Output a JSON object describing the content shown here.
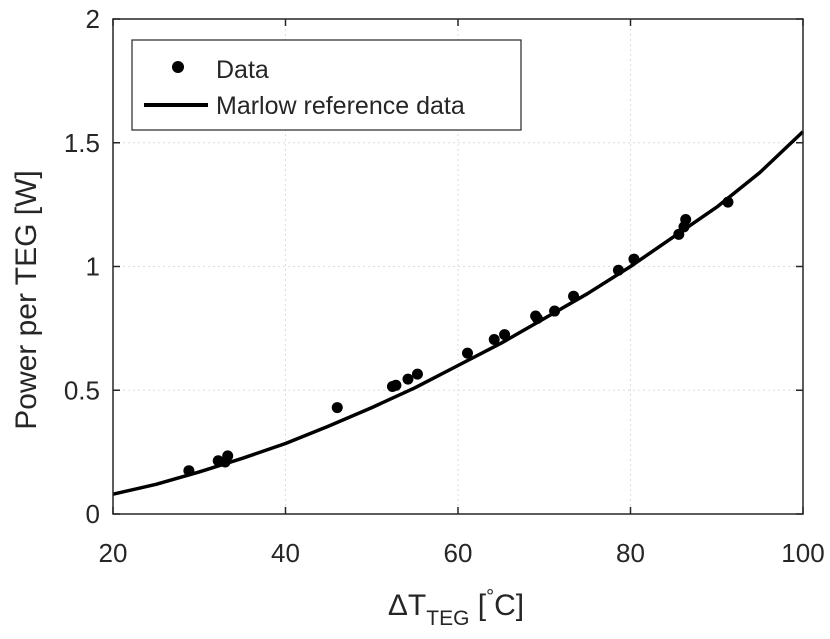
{
  "chart_data": {
    "type": "scatter",
    "xlabel": {
      "main": "ΔT",
      "sub": "TEG",
      "unit_open": " [",
      "deg": "°",
      "unit_close": "C]"
    },
    "ylabel": "Power per TEG [W]",
    "xlim": [
      20,
      100
    ],
    "ylim": [
      0,
      2
    ],
    "xticks": [
      20,
      40,
      60,
      80,
      100
    ],
    "yticks": [
      0,
      0.5,
      1,
      1.5,
      2
    ],
    "ytick_labels": [
      "0",
      "0.5",
      "1",
      "1.5",
      "2"
    ],
    "grid": true,
    "legend_position": "top-left",
    "series": [
      {
        "name": "Data",
        "kind": "markers",
        "x": [
          28.8,
          32.2,
          33.0,
          33.3,
          46.0,
          52.4,
          52.8,
          54.2,
          55.3,
          61.1,
          64.2,
          65.4,
          69.0,
          69.2,
          71.2,
          73.4,
          78.6,
          80.4,
          85.6,
          86.2,
          86.4,
          91.3
        ],
        "y": [
          0.175,
          0.215,
          0.21,
          0.235,
          0.43,
          0.515,
          0.52,
          0.545,
          0.565,
          0.65,
          0.705,
          0.725,
          0.8,
          0.79,
          0.82,
          0.88,
          0.985,
          1.03,
          1.13,
          1.16,
          1.19,
          1.26
        ]
      },
      {
        "name": "Marlow reference data",
        "kind": "line",
        "x": [
          20,
          25,
          30,
          35,
          40,
          45,
          50,
          55,
          60,
          65,
          70,
          75,
          80,
          85,
          90,
          95,
          100
        ],
        "y": [
          0.08,
          0.12,
          0.17,
          0.225,
          0.285,
          0.355,
          0.43,
          0.51,
          0.6,
          0.69,
          0.79,
          0.89,
          1.0,
          1.12,
          1.24,
          1.38,
          1.545
        ]
      }
    ]
  }
}
